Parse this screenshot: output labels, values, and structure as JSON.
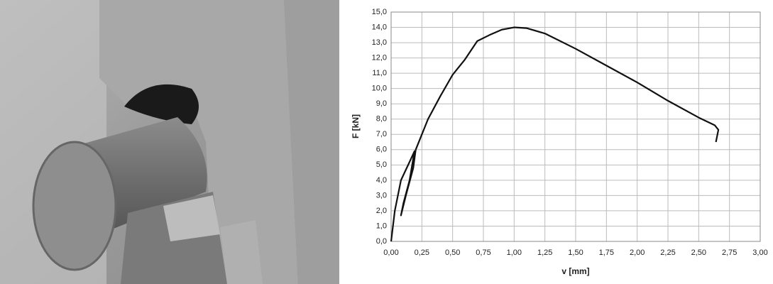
{
  "chart_data": {
    "type": "line",
    "xlabel": "v [mm]",
    "ylabel": "F [kN]",
    "x": [
      0,
      0.03,
      0.08,
      0.15,
      0.19,
      0.15,
      0.1,
      0.08,
      0.12,
      0.18,
      0.2,
      0.3,
      0.4,
      0.5,
      0.6,
      0.7,
      0.8,
      0.9,
      1.0,
      1.1,
      1.25,
      1.5,
      1.75,
      2.0,
      2.25,
      2.5,
      2.63,
      2.66,
      2.64
    ],
    "series": [
      {
        "color": "#111111",
        "values": [
          0,
          2.0,
          4.0,
          5.2,
          5.9,
          4.0,
          2.5,
          1.7,
          3.0,
          4.8,
          6.0,
          8.0,
          9.5,
          10.9,
          11.9,
          13.1,
          13.5,
          13.85,
          14.0,
          13.95,
          13.6,
          12.6,
          11.5,
          10.4,
          9.2,
          8.1,
          7.6,
          7.3,
          6.5
        ]
      }
    ],
    "xlim": [
      0,
      3
    ],
    "ylim": [
      0,
      15
    ],
    "grid": true,
    "xticks": [
      {
        "value": 0,
        "label": "0,00"
      },
      {
        "value": 0.25,
        "label": "0,25"
      },
      {
        "value": 0.5,
        "label": "0,50"
      },
      {
        "value": 0.75,
        "label": "0,75"
      },
      {
        "value": 1,
        "label": "1,00"
      },
      {
        "value": 1.25,
        "label": "1,25"
      },
      {
        "value": 1.5,
        "label": "1,50"
      },
      {
        "value": 1.75,
        "label": "1,75"
      },
      {
        "value": 2,
        "label": "2,00"
      },
      {
        "value": 2.25,
        "label": "2,25"
      },
      {
        "value": 2.5,
        "label": "2,50"
      },
      {
        "value": 2.75,
        "label": "2,75"
      },
      {
        "value": 3,
        "label": "3,00"
      }
    ],
    "yticks": [
      {
        "value": 0,
        "label": "0,0"
      },
      {
        "value": 1,
        "label": "1,0"
      },
      {
        "value": 2,
        "label": "2,0"
      },
      {
        "value": 3,
        "label": "3,0"
      },
      {
        "value": 4,
        "label": "4,0"
      },
      {
        "value": 5,
        "label": "5,0"
      },
      {
        "value": 6,
        "label": "6,0"
      },
      {
        "value": 7,
        "label": "7,0"
      },
      {
        "value": 8,
        "label": "8,0"
      },
      {
        "value": 9,
        "label": "9,0"
      },
      {
        "value": 10,
        "label": "10,0"
      },
      {
        "value": 11,
        "label": "11,0"
      },
      {
        "value": 12,
        "label": "12,0"
      },
      {
        "value": 13,
        "label": "13,0"
      },
      {
        "value": 14,
        "label": "14,0"
      },
      {
        "value": 15,
        "label": "15,0"
      }
    ]
  }
}
